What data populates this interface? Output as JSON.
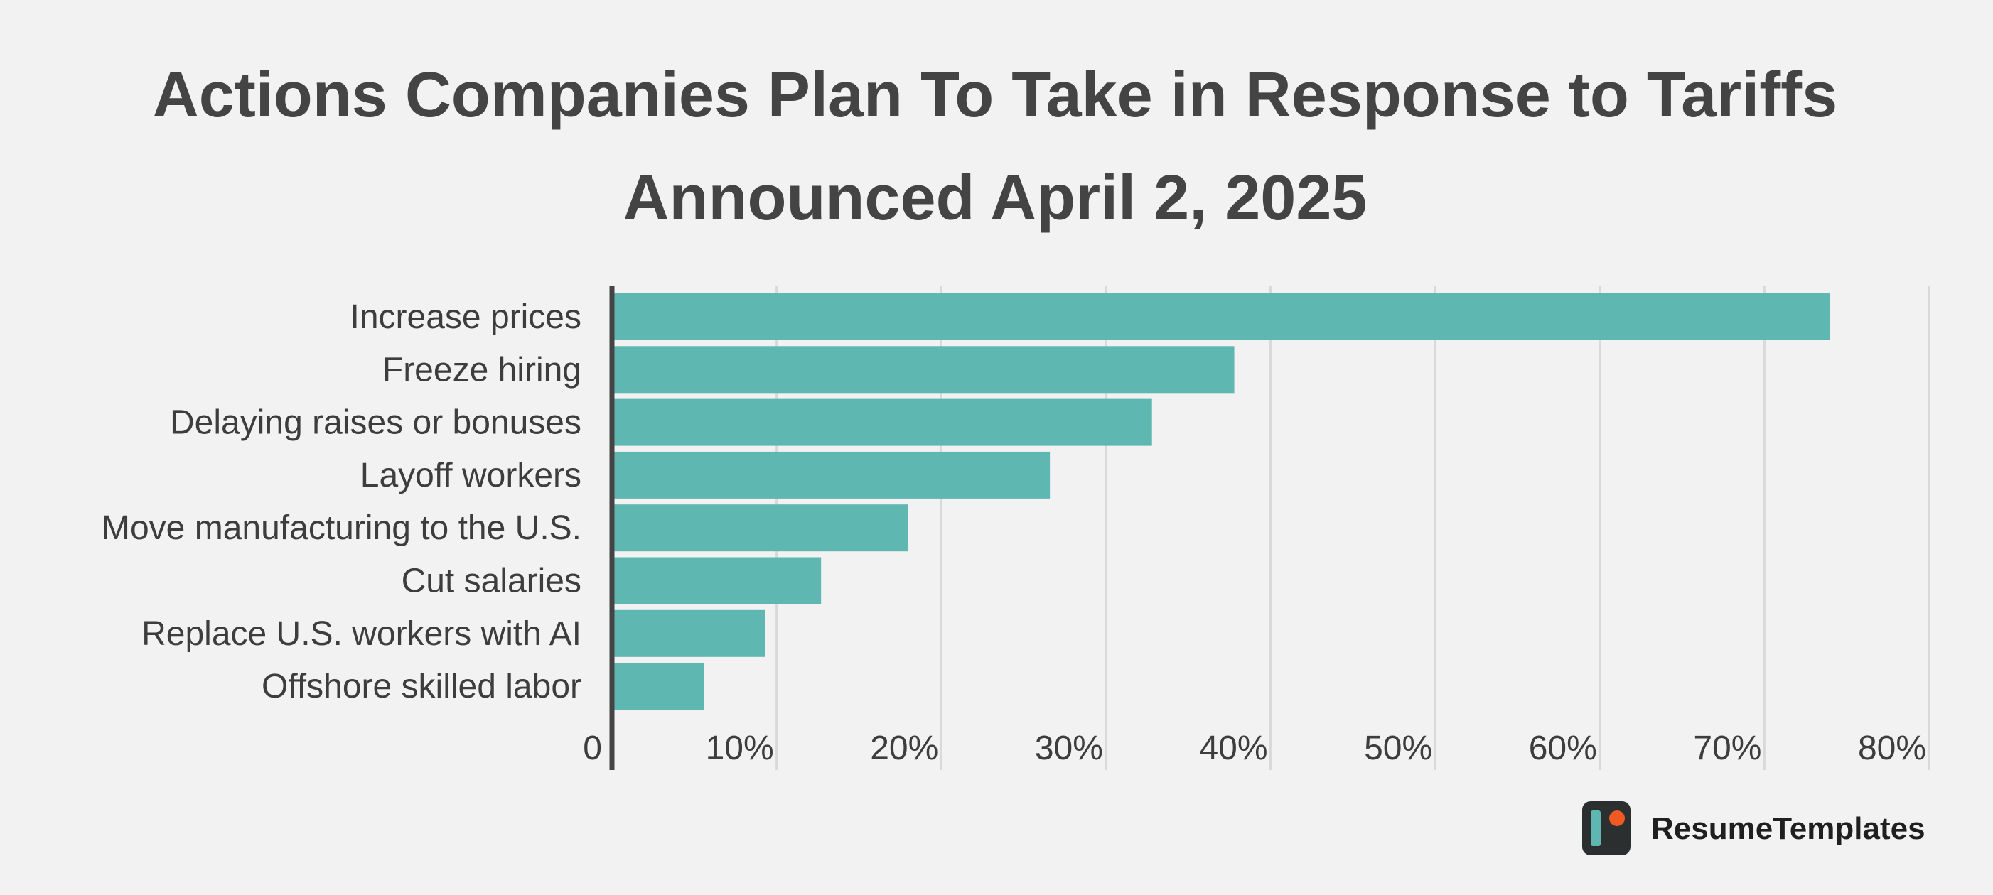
{
  "chart_data": {
    "type": "bar",
    "orientation": "horizontal",
    "title_lines": [
      "Actions Companies Plan To Take in Response to Tariffs",
      "Announced April 2, 2025"
    ],
    "categories": [
      "Increase prices",
      "Freeze hiring",
      "Delaying raises or bonuses",
      "Layoff workers",
      "Move manufacturing to the U.S.",
      "Cut salaries",
      "Replace U.S. workers with AI",
      "Offshore skilled labor"
    ],
    "values": [
      74,
      37.8,
      32.8,
      26.6,
      18,
      12.7,
      9.3,
      5.6
    ],
    "xlim": [
      0,
      80
    ],
    "xticks": [
      0,
      10,
      20,
      30,
      40,
      50,
      60,
      70,
      80
    ],
    "xtick_labels": [
      "0",
      "10%",
      "20%",
      "30%",
      "40%",
      "50%",
      "60%",
      "70%",
      "80%"
    ],
    "grid": true,
    "legend": "none",
    "bar_color": "#5fb7b2",
    "grid_color": "#d9d9d9",
    "axis_color": "#444444"
  },
  "brand": {
    "name": "ResumeTemplates",
    "logo_icon": "resumetemplates-logo-icon",
    "logo_bg": "#2b2f2f",
    "logo_bar": "#5fb7b2",
    "logo_dot": "#ef5a24"
  }
}
